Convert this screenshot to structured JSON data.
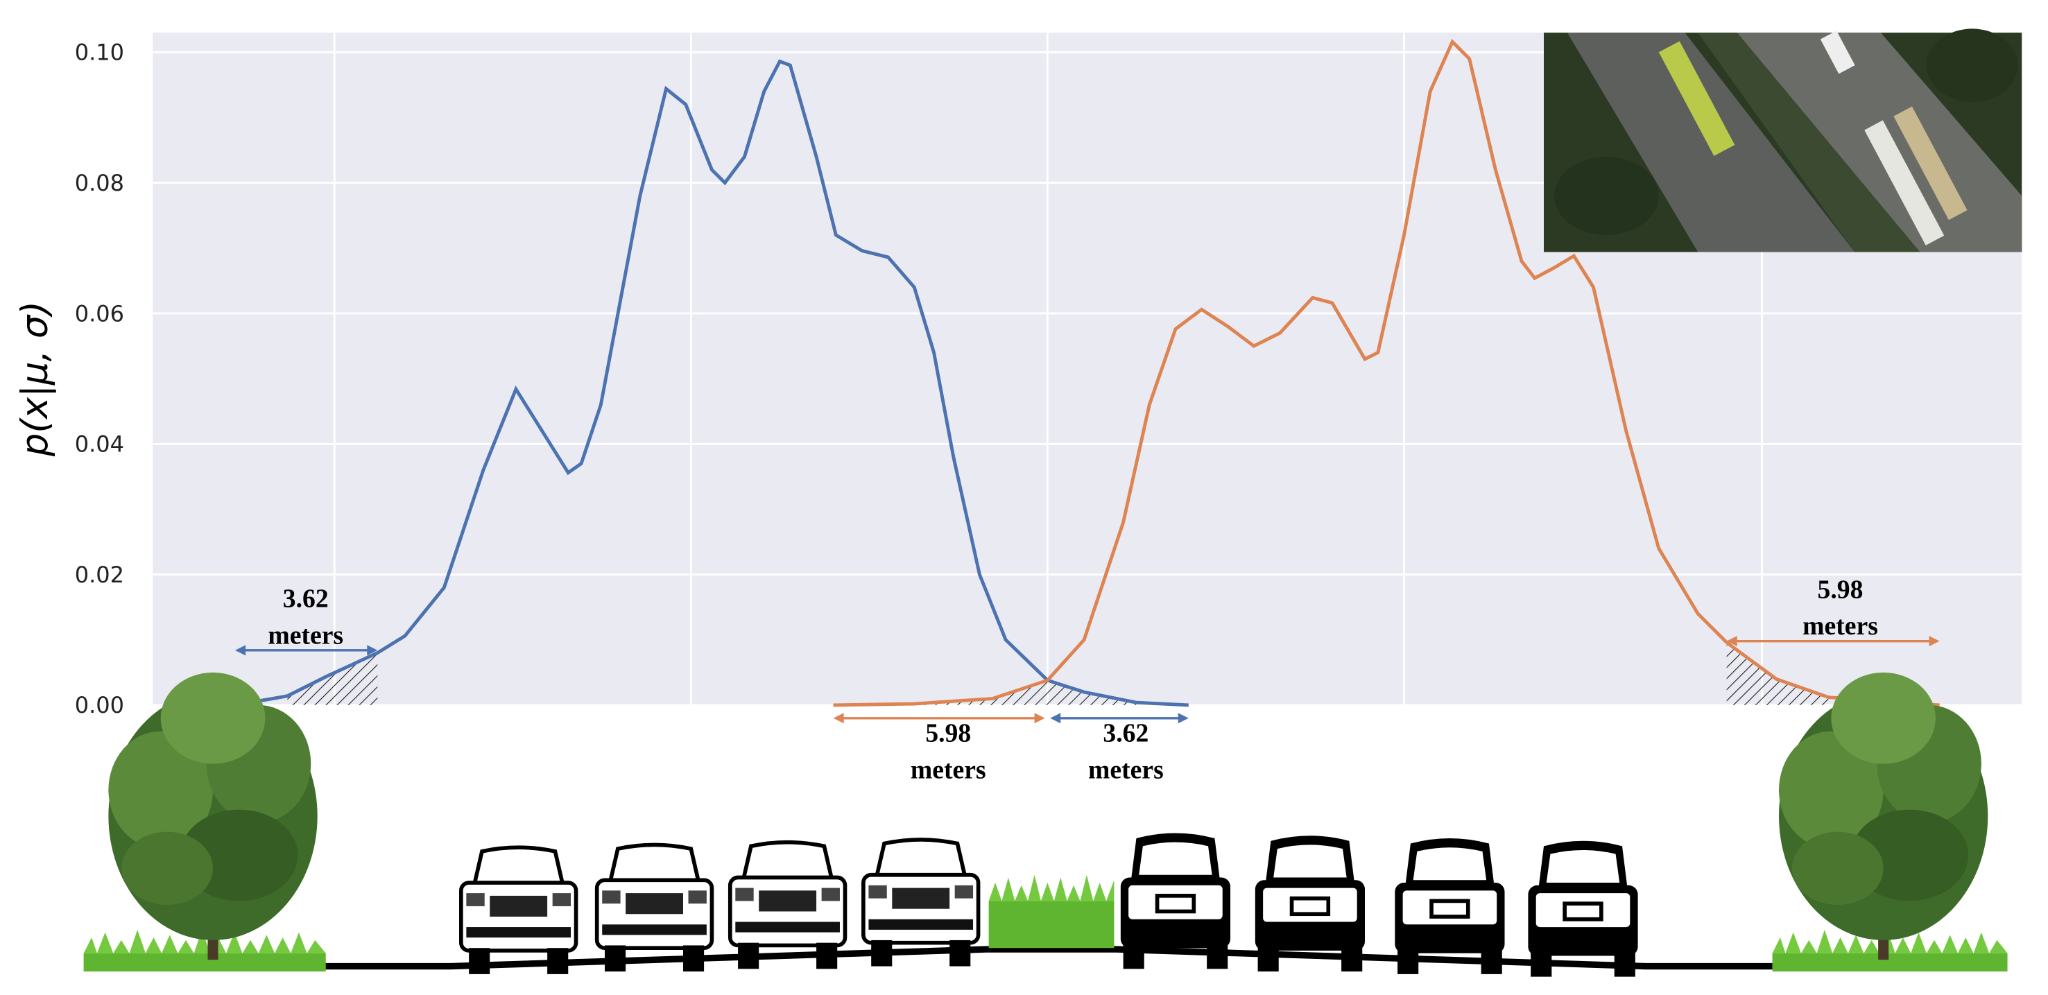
{
  "chart_data": {
    "type": "line",
    "ylabel": "p(x|μ, σ)",
    "ylim": [
      0,
      0.103
    ],
    "yticks": [
      {
        "value": 0,
        "label": "0.00"
      },
      {
        "value": 0.02,
        "label": "0.02"
      },
      {
        "value": 0.04,
        "label": "0.04"
      },
      {
        "value": 0.06,
        "label": "0.06"
      },
      {
        "value": 0.08,
        "label": "0.08"
      },
      {
        "value": 0.1,
        "label": "0.10"
      }
    ],
    "xlim": [
      117,
      1548
    ],
    "xticks": [
      256,
      529,
      802,
      1075,
      1349
    ],
    "grid": true,
    "series": [
      {
        "color": "#4c72b0",
        "x": [
          180,
          220,
          250,
          289,
          310,
          340,
          370,
          395,
          415,
          435,
          445,
          460,
          490,
          510,
          525,
          545,
          555,
          570,
          585,
          597,
          605,
          625,
          640,
          660,
          680,
          700,
          715,
          730,
          750,
          770,
          802,
          830,
          870,
          910
        ],
        "values": [
          0,
          0.0014,
          0.0044,
          0.008,
          0.0106,
          0.018,
          0.036,
          0.0484,
          0.042,
          0.0356,
          0.037,
          0.046,
          0.078,
          0.0944,
          0.092,
          0.082,
          0.08,
          0.084,
          0.094,
          0.0986,
          0.098,
          0.084,
          0.072,
          0.0696,
          0.0686,
          0.064,
          0.054,
          0.038,
          0.02,
          0.01,
          0.0038,
          0.002,
          0.0004,
          0
        ]
      },
      {
        "color": "#dd8452",
        "x": [
          638,
          700,
          760,
          802,
          830,
          860,
          880,
          900,
          920,
          940,
          960,
          980,
          1005,
          1020,
          1045,
          1055,
          1075,
          1095,
          1112,
          1125,
          1145,
          1165,
          1175,
          1190,
          1205,
          1220,
          1245,
          1270,
          1300,
          1322,
          1360,
          1400,
          1485
        ],
        "values": [
          0,
          0.0002,
          0.001,
          0.0038,
          0.01,
          0.028,
          0.046,
          0.0576,
          0.0606,
          0.058,
          0.055,
          0.057,
          0.0624,
          0.0616,
          0.053,
          0.054,
          0.072,
          0.094,
          0.1016,
          0.099,
          0.082,
          0.068,
          0.0654,
          0.067,
          0.0688,
          0.064,
          0.042,
          0.024,
          0.014,
          0.0096,
          0.004,
          0.0012,
          0
        ]
      }
    ],
    "annotations": [
      {
        "value": "3.62",
        "unit": "meters"
      },
      {
        "value": "5.98",
        "unit": "meters"
      },
      {
        "value": "5.98",
        "unit": "meters"
      },
      {
        "value": "3.62",
        "unit": "meters"
      }
    ]
  }
}
